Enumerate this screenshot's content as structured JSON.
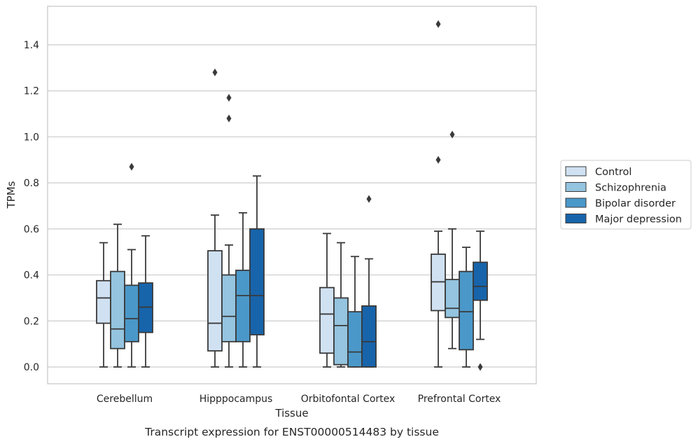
{
  "chart_data": {
    "type": "box",
    "title": "",
    "caption": "Transcript expression for ENST00000514483 by tissue",
    "xlabel": "Tissue",
    "ylabel": "TPMs",
    "ylim": [
      -0.07,
      1.57
    ],
    "yticks": [
      0.0,
      0.2,
      0.4,
      0.6,
      0.8,
      1.0,
      1.2,
      1.4
    ],
    "ytick_labels": [
      "0.0",
      "0.2",
      "0.4",
      "0.6",
      "0.8",
      "1.0",
      "1.2",
      "1.4"
    ],
    "grid": true,
    "legend_position": "right",
    "categories": [
      "Cerebellum",
      "Hipppocampus",
      "Orbitofontal Cortex",
      "Prefrontal Cortex"
    ],
    "series": [
      {
        "name": "Control",
        "color": "#d0e1f2",
        "boxes": [
          {
            "min": 0.0,
            "q1": 0.19,
            "median": 0.3,
            "q3": 0.375,
            "max": 0.54,
            "outliers": []
          },
          {
            "min": 0.0,
            "q1": 0.07,
            "median": 0.19,
            "q3": 0.505,
            "max": 0.66,
            "outliers": [
              1.28
            ]
          },
          {
            "min": 0.0,
            "q1": 0.06,
            "median": 0.23,
            "q3": 0.345,
            "max": 0.58,
            "outliers": []
          },
          {
            "min": 0.0,
            "q1": 0.245,
            "median": 0.37,
            "q3": 0.49,
            "max": 0.59,
            "outliers": [
              0.9,
              1.49
            ]
          }
        ]
      },
      {
        "name": "Schizophrenia",
        "color": "#94c4df",
        "boxes": [
          {
            "min": 0.0,
            "q1": 0.08,
            "median": 0.165,
            "q3": 0.415,
            "max": 0.62,
            "outliers": []
          },
          {
            "min": 0.0,
            "q1": 0.11,
            "median": 0.22,
            "q3": 0.4,
            "max": 0.53,
            "outliers": [
              1.08,
              1.17
            ]
          },
          {
            "min": 0.0,
            "q1": 0.01,
            "median": 0.18,
            "q3": 0.3,
            "max": 0.54,
            "outliers": []
          },
          {
            "min": 0.08,
            "q1": 0.215,
            "median": 0.255,
            "q3": 0.38,
            "max": 0.6,
            "outliers": [
              1.01
            ]
          }
        ]
      },
      {
        "name": "Bipolar disorder",
        "color": "#4a98c9",
        "boxes": [
          {
            "min": 0.0,
            "q1": 0.11,
            "median": 0.21,
            "q3": 0.355,
            "max": 0.51,
            "outliers": [
              0.87
            ]
          },
          {
            "min": 0.0,
            "q1": 0.11,
            "median": 0.31,
            "q3": 0.42,
            "max": 0.67,
            "outliers": []
          },
          {
            "min": 0.0,
            "q1": 0.0,
            "median": 0.065,
            "q3": 0.24,
            "max": 0.48,
            "outliers": []
          },
          {
            "min": 0.0,
            "q1": 0.075,
            "median": 0.24,
            "q3": 0.415,
            "max": 0.52,
            "outliers": []
          }
        ]
      },
      {
        "name": "Major depression",
        "color": "#1764ab",
        "boxes": [
          {
            "min": 0.0,
            "q1": 0.15,
            "median": 0.26,
            "q3": 0.365,
            "max": 0.57,
            "outliers": []
          },
          {
            "min": 0.0,
            "q1": 0.14,
            "median": 0.31,
            "q3": 0.6,
            "max": 0.83,
            "outliers": []
          },
          {
            "min": 0.0,
            "q1": 0.0,
            "median": 0.11,
            "q3": 0.265,
            "max": 0.47,
            "outliers": [
              0.73
            ]
          },
          {
            "min": 0.12,
            "q1": 0.29,
            "median": 0.35,
            "q3": 0.455,
            "max": 0.59,
            "outliers": [
              0.0
            ]
          }
        ]
      }
    ]
  }
}
